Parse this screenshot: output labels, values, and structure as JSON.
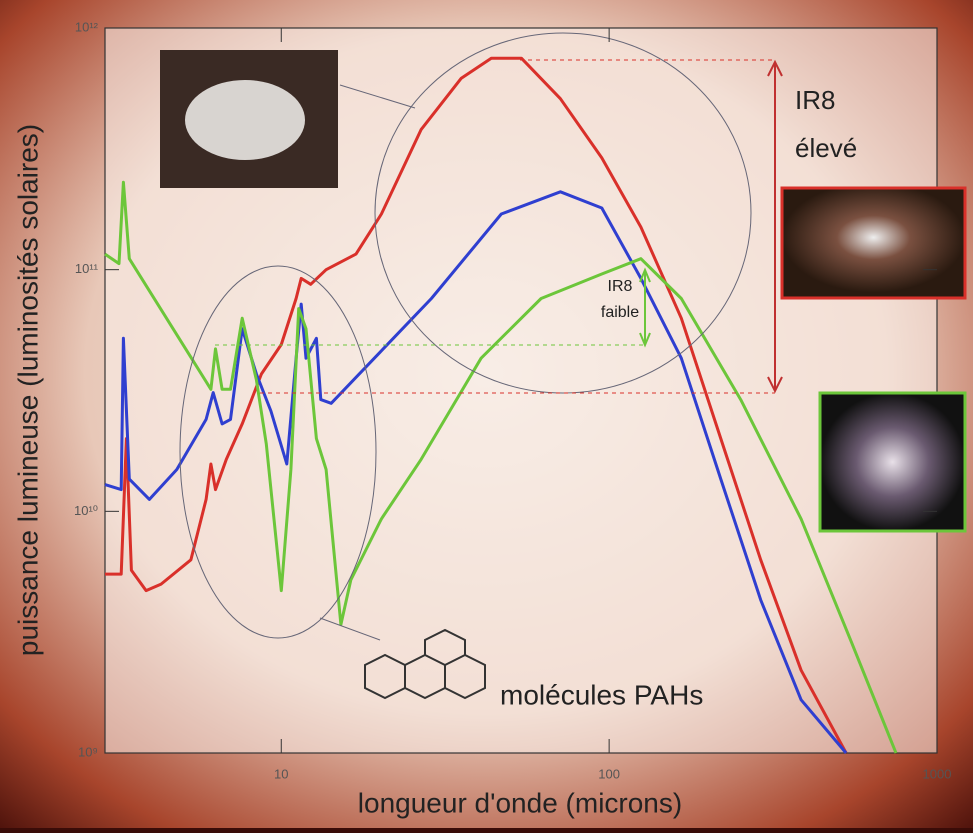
{
  "chart_data": {
    "type": "line",
    "xlabel": "longueur d'onde (microns)",
    "ylabel": "puissance lumineuse (luminosités solaires)",
    "xscale": "log",
    "yscale": "log",
    "xlim": [
      2.9,
      1000
    ],
    "ylim": [
      1000000000.0,
      1000000000000.0
    ],
    "xticks": [
      10,
      100,
      1000
    ],
    "yticks": [
      {
        "value": 1000000000.0,
        "label": "10⁹"
      },
      {
        "value": 10000000000.0,
        "label": "10¹⁰"
      },
      {
        "value": 100000000000.0,
        "label": "10¹¹"
      },
      {
        "value": 1000000000000.0,
        "label": "10¹²"
      }
    ],
    "series": [
      {
        "color": "#d9302a",
        "x": [
          2.9,
          3.25,
          3.37,
          3.49,
          3.87,
          4.3,
          5.3,
          5.9,
          6.1,
          6.3,
          6.8,
          7.6,
          8.7,
          10,
          11.1,
          11.5,
          12.3,
          13.7,
          16.9,
          20.2,
          26.7,
          35.4,
          43.7,
          54,
          71,
          95,
          125,
          166,
          219,
          290,
          385,
          528
        ],
        "values": [
          5500000000.0,
          5500000000.0,
          20000000000.0,
          5700000000.0,
          4700000000.0,
          5000000000.0,
          6300000000.0,
          11200000000.0,
          15700000000.0,
          12300000000.0,
          16400000000.0,
          23000000000.0,
          37000000000.0,
          49000000000.0,
          76000000000.0,
          92000000000.0,
          87000000000.0,
          100000000000.0,
          116000000000.0,
          170000000000.0,
          380000000000.0,
          620000000000.0,
          750000000000.0,
          750000000000.0,
          510000000000.0,
          290000000000.0,
          150000000000.0,
          63000000000.0,
          20000000000.0,
          6300000000.0,
          2200000000.0,
          1000000000.0
        ]
      },
      {
        "color": "#2f3fd0",
        "x": [
          2.9,
          3.25,
          3.3,
          3.44,
          3.96,
          4.8,
          5.9,
          6.2,
          6.6,
          7.0,
          7.6,
          8.4,
          9.3,
          10.4,
          11.1,
          11.5,
          11.9,
          12.8,
          13.2,
          14.2,
          28.7,
          46.9,
          71,
          95,
          125,
          166,
          219,
          290,
          385,
          528
        ],
        "values": [
          12900000000.0,
          12300000000.0,
          52000000000.0,
          13600000000.0,
          11200000000.0,
          14900000000.0,
          24000000000.0,
          31000000000.0,
          23000000000.0,
          24000000000.0,
          57000000000.0,
          37000000000.0,
          26000000000.0,
          15700000000.0,
          43000000000.0,
          72000000000.0,
          43000000000.0,
          52000000000.0,
          29000000000.0,
          28000000000.0,
          76000000000.0,
          170000000000.0,
          210000000000.0,
          180000000000.0,
          92000000000.0,
          43000000000.0,
          13600000000.0,
          4300000000.0,
          1660000000.0,
          1000000000.0
        ]
      },
      {
        "color": "#6cc63a",
        "x": [
          2.9,
          3.2,
          3.3,
          3.44,
          6.1,
          6.3,
          6.6,
          7.0,
          7.6,
          8.4,
          9.0,
          10,
          10.7,
          11.3,
          11.9,
          12.8,
          13.7,
          15.2,
          16.3,
          20.2,
          26.7,
          40.7,
          62,
          95,
          125,
          166,
          252,
          385,
          547,
          750
        ],
        "values": [
          116000000000.0,
          106000000000.0,
          230000000000.0,
          111000000000.0,
          32000000000.0,
          47000000000.0,
          32000000000.0,
          32000000000.0,
          63000000000.0,
          35000000000.0,
          19000000000.0,
          4700000000.0,
          14900000000.0,
          69000000000.0,
          57000000000.0,
          20000000000.0,
          14900000000.0,
          3400000000.0,
          5200000000.0,
          9300000000.0,
          16400000000.0,
          43000000000.0,
          76000000000.0,
          96000000000.0,
          111000000000.0,
          76000000000.0,
          29000000000.0,
          9300000000.0,
          2900000000.0,
          1000000000.0
        ]
      }
    ],
    "annotations": [
      "IR8",
      "élevé",
      "IR8",
      "faible",
      "molécules PAHs"
    ]
  }
}
